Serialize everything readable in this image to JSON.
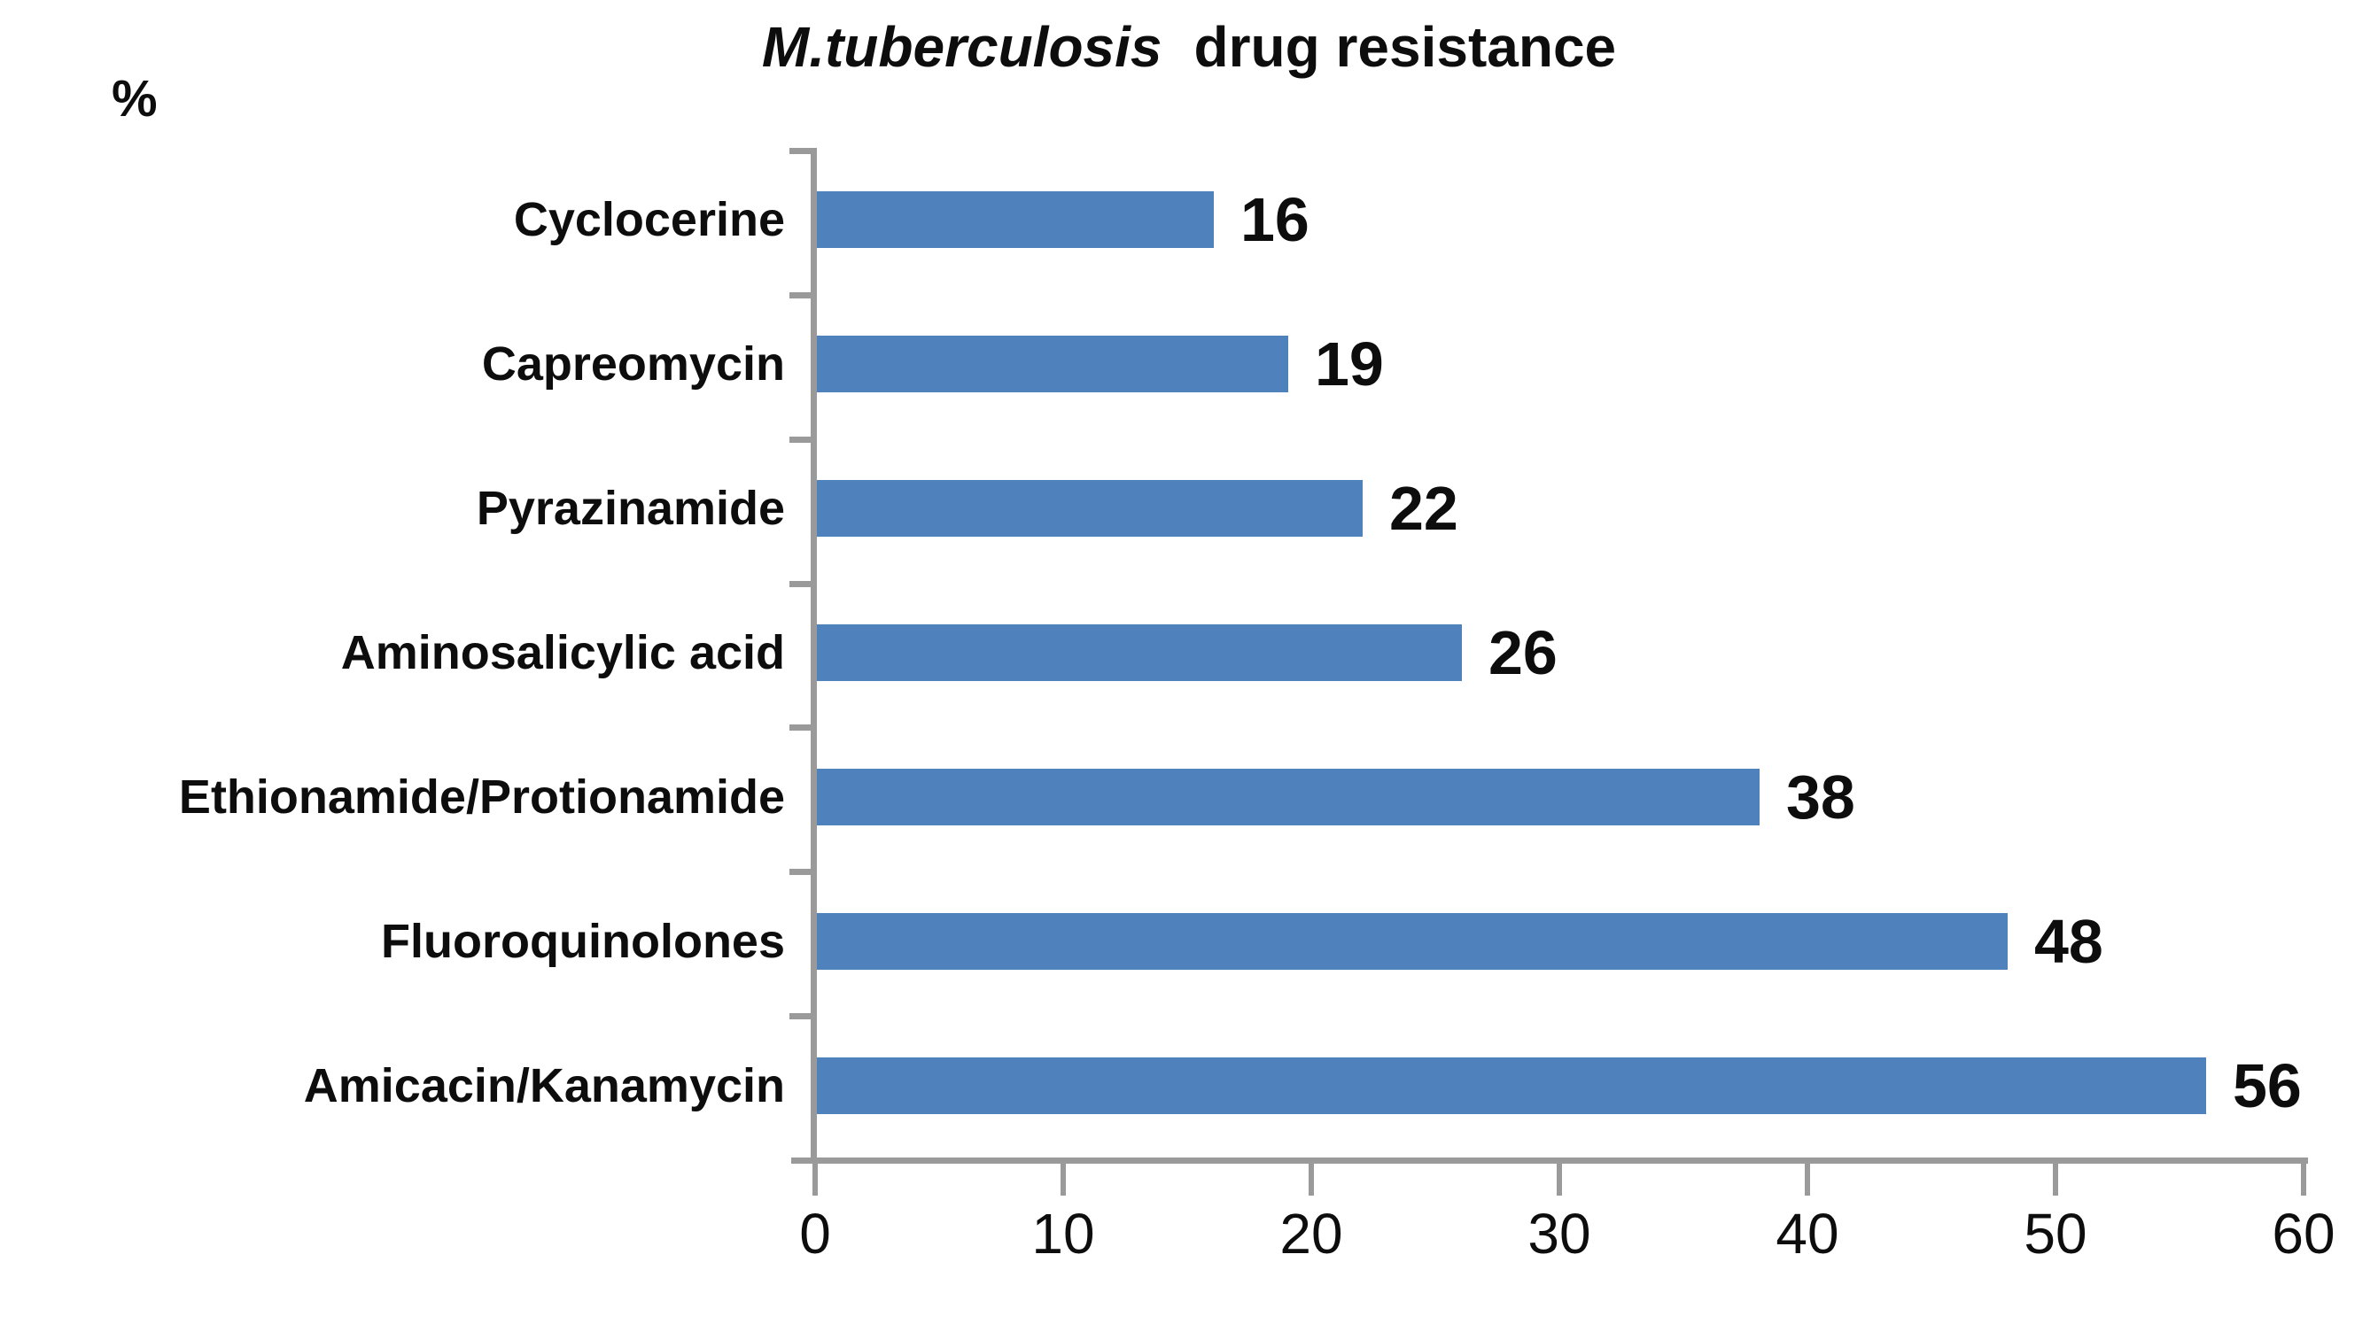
{
  "chart_data": {
    "type": "bar",
    "orientation": "horizontal",
    "title": {
      "italic": "M.tuberculosis",
      "rest": "drug resistance"
    },
    "unit_label": "%",
    "categories": [
      "Cyclocerine",
      "Capreomycin",
      "Pyrazinamide",
      "Aminosalicylic acid",
      "Ethionamide/Protionamide",
      "Fluoroquinolones",
      "Amicacin/Kanamycin"
    ],
    "values": [
      16,
      19,
      22,
      26,
      38,
      48,
      56
    ],
    "data_labels": true,
    "xlim": [
      0,
      60
    ],
    "x_ticks": [
      0,
      10,
      20,
      30,
      40,
      50,
      60
    ],
    "grid": false,
    "legend": false,
    "bar_color": "#4F81BD",
    "axis_color": "#9A9A9A",
    "text_color": "#0d0d0d"
  }
}
